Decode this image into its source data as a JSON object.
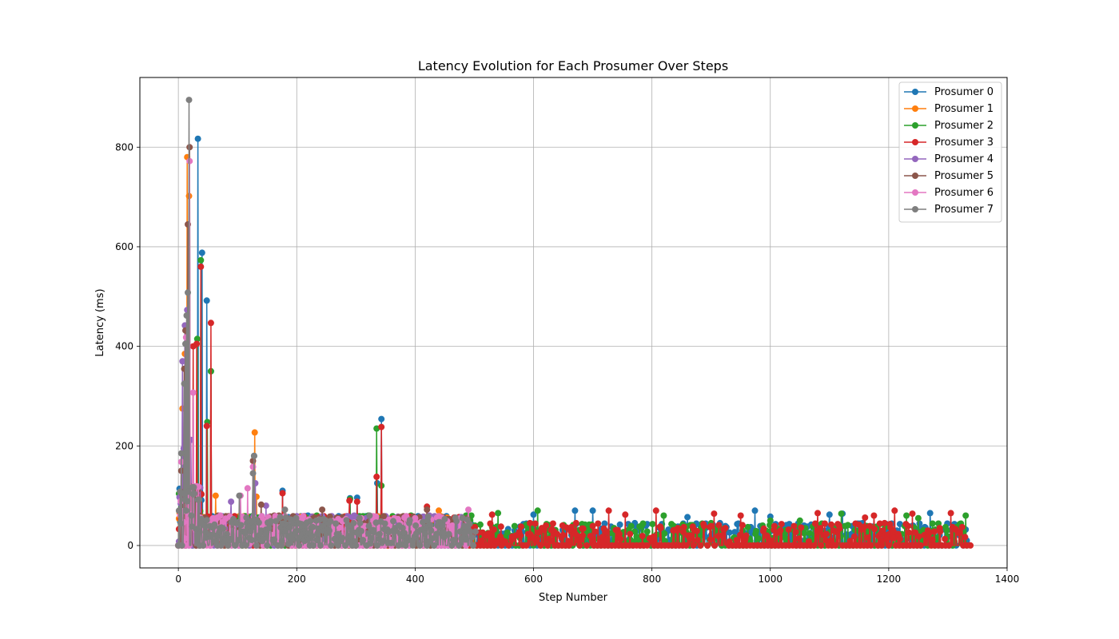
{
  "chart_data": {
    "type": "line",
    "title": "Latency Evolution for Each Prosumer Over Steps",
    "xlabel": "Step Number",
    "ylabel": "Latency (ms)",
    "xlim": [
      -65,
      1400
    ],
    "ylim": [
      -45,
      940
    ],
    "xticks": [
      0,
      200,
      400,
      600,
      800,
      1000,
      1200,
      1400
    ],
    "yticks": [
      0,
      200,
      400,
      600,
      800
    ],
    "grid": true,
    "legend_position": "top-right",
    "markers": "circle",
    "series": [
      {
        "name": "Prosumer 0",
        "color": "#1f77b4",
        "x_max": 1332,
        "peaks": [
          [
            33,
            817
          ],
          [
            40,
            588
          ],
          [
            48,
            492
          ],
          [
            55,
            350
          ],
          [
            343,
            254
          ],
          [
            336,
            125
          ],
          [
            176,
            110
          ],
          [
            128,
            180
          ],
          [
            290,
            95
          ],
          [
            302,
            96
          ]
        ],
        "tail": [
          [
            1122,
            64
          ],
          [
            1270,
            65
          ],
          [
            974,
            70
          ],
          [
            1000,
            58
          ],
          [
            860,
            57
          ],
          [
            700,
            70
          ],
          [
            670,
            70
          ],
          [
            600,
            62
          ],
          [
            1100,
            62
          ],
          [
            1330,
            32
          ]
        ]
      },
      {
        "name": "Prosumer 1",
        "color": "#ff7f0e",
        "x_max": 500,
        "peaks": [
          [
            15,
            780
          ],
          [
            18,
            702
          ],
          [
            7,
            275
          ],
          [
            11,
            385
          ],
          [
            129,
            227
          ],
          [
            63,
            100
          ],
          [
            132,
            98
          ],
          [
            440,
            70
          ]
        ],
        "tail": []
      },
      {
        "name": "Prosumer 2",
        "color": "#2ca02c",
        "x_max": 1333,
        "peaks": [
          [
            38,
            573
          ],
          [
            32,
            415
          ],
          [
            55,
            350
          ],
          [
            49,
            248
          ],
          [
            335,
            235
          ],
          [
            343,
            120
          ],
          [
            290,
            93
          ]
        ],
        "tail": [
          [
            607,
            70
          ],
          [
            1120,
            64
          ],
          [
            1230,
            60
          ],
          [
            1330,
            60
          ],
          [
            820,
            60
          ],
          [
            540,
            65
          ],
          [
            1250,
            55
          ],
          [
            900,
            45
          ],
          [
            1000,
            50
          ],
          [
            1050,
            50
          ]
        ]
      },
      {
        "name": "Prosumer 3",
        "color": "#d62728",
        "x_max": 1338,
        "peaks": [
          [
            38,
            560
          ],
          [
            55,
            447
          ],
          [
            31,
            405
          ],
          [
            25,
            400
          ],
          [
            48,
            240
          ],
          [
            343,
            238
          ],
          [
            335,
            138
          ],
          [
            176,
            105
          ],
          [
            302,
            88
          ],
          [
            289,
            90
          ],
          [
            420,
            78
          ]
        ],
        "tail": [
          [
            1210,
            70
          ],
          [
            807,
            70
          ],
          [
            727,
            70
          ],
          [
            1080,
            65
          ],
          [
            1305,
            65
          ],
          [
            1240,
            64
          ],
          [
            905,
            64
          ],
          [
            755,
            62
          ],
          [
            1175,
            60
          ],
          [
            1160,
            56
          ],
          [
            950,
            60
          ],
          [
            530,
            62
          ]
        ]
      },
      {
        "name": "Prosumer 4",
        "color": "#9467bd",
        "x_max": 490,
        "peaks": [
          [
            15,
            473
          ],
          [
            11,
            442
          ],
          [
            7,
            370
          ],
          [
            21,
            212
          ],
          [
            9,
            195
          ],
          [
            130,
            125
          ],
          [
            89,
            88
          ],
          [
            148,
            80
          ]
        ],
        "tail": []
      },
      {
        "name": "Prosumer 5",
        "color": "#8c564b",
        "x_max": 490,
        "peaks": [
          [
            19,
            800
          ],
          [
            16,
            645
          ],
          [
            12,
            432
          ],
          [
            10,
            355
          ],
          [
            5,
            150
          ],
          [
            126,
            170
          ],
          [
            140,
            82
          ],
          [
            243,
            72
          ],
          [
            420,
            72
          ]
        ],
        "tail": []
      },
      {
        "name": "Prosumer 6",
        "color": "#e377c2",
        "x_max": 495,
        "peaks": [
          [
            19,
            772
          ],
          [
            13,
            418
          ],
          [
            5,
            168
          ],
          [
            25,
            307
          ],
          [
            126,
            158
          ],
          [
            105,
            100
          ],
          [
            117,
            115
          ],
          [
            490,
            72
          ]
        ],
        "tail": []
      },
      {
        "name": "Prosumer 7",
        "color": "#7f7f7f",
        "x_max": 502,
        "peaks": [
          [
            18,
            895
          ],
          [
            16,
            508
          ],
          [
            14,
            462
          ],
          [
            12,
            405
          ],
          [
            10,
            325
          ],
          [
            5,
            185
          ],
          [
            128,
            180
          ],
          [
            126,
            145
          ],
          [
            103,
            100
          ],
          [
            180,
            72
          ]
        ],
        "tail": []
      }
    ]
  }
}
